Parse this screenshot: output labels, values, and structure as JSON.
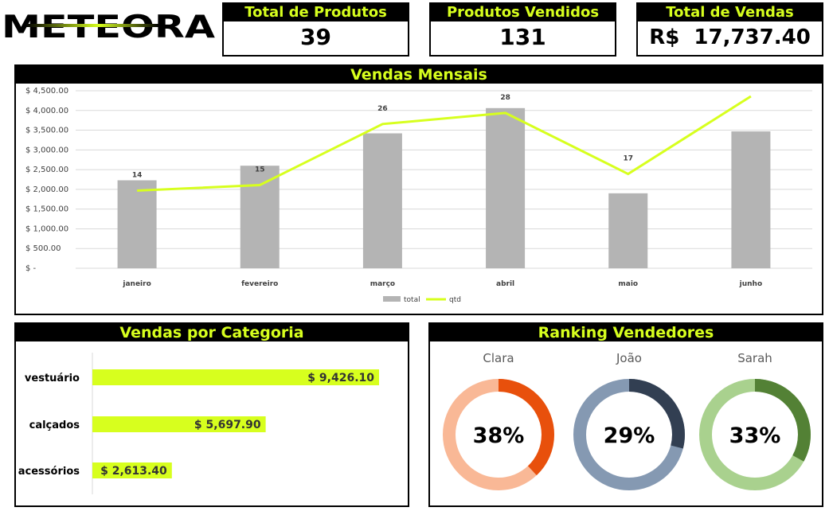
{
  "logo": {
    "text": "METEORA"
  },
  "kpis": [
    {
      "label": "Total de Produtos",
      "value": "39"
    },
    {
      "label": "Produtos Vendidos",
      "value": "131"
    },
    {
      "label": "Total de Vendas",
      "value": "R$  17,737.40"
    }
  ],
  "monthly": {
    "title": "Vendas Mensais",
    "chart_data": {
      "type": "bar",
      "categories": [
        "janeiro",
        "fevereiro",
        "março",
        "abril",
        "maio",
        "junho"
      ],
      "series": [
        {
          "name": "total",
          "values": [
            2230,
            2600,
            3420,
            4060,
            1900,
            3470
          ],
          "color": "#b4b4b4"
        },
        {
          "name": "qtd",
          "values": [
            14,
            15,
            26,
            28,
            17,
            31
          ],
          "color": "#d7ff1e"
        }
      ],
      "y_ticks": [
        "$ -",
        "$ 500.00",
        "$ 1,000.00",
        "$ 1,500.00",
        "$ 2,000.00",
        "$ 2,500.00",
        "$ 3,000.00",
        "$ 3,500.00",
        "$ 4,000.00",
        "$ 4,500.00"
      ],
      "ylim": [
        0,
        4500
      ],
      "legend": "bottom"
    }
  },
  "categories": {
    "title": "Vendas por Categoria",
    "chart_data": {
      "type": "bar",
      "orientation": "horizontal",
      "categories": [
        "vestuário",
        "calçados",
        "acessórios"
      ],
      "values": [
        9426.1,
        5697.9,
        2613.4
      ],
      "labels": [
        "$ 9,426.10",
        "$ 5,697.90",
        "$ 2,613.40"
      ],
      "color": "#d7ff1e"
    }
  },
  "ranking": {
    "title": "Ranking Vendedores",
    "chart_data": {
      "type": "pie",
      "sellers": [
        {
          "name": "Clara",
          "percent": 38,
          "label": "38%",
          "color": "#e8500c",
          "rest_color": "#f9b896"
        },
        {
          "name": "João",
          "percent": 29,
          "label": "29%",
          "color": "#323f52",
          "rest_color": "#8599b2"
        },
        {
          "name": "Sarah",
          "percent": 33,
          "label": "33%",
          "color": "#538135",
          "rest_color": "#a9d18e"
        }
      ]
    }
  }
}
